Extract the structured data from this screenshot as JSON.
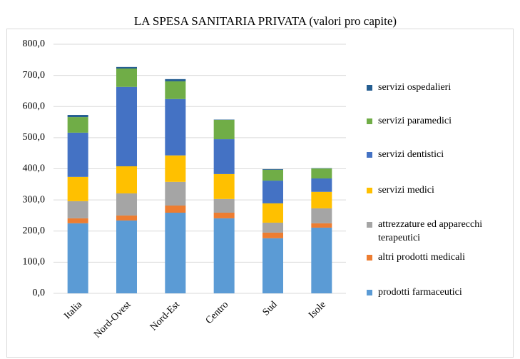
{
  "chart_data": {
    "type": "stacked-bar",
    "title": "LA SPESA SANITARIA PRIVATA (valori pro capite)",
    "categories": [
      "Italia",
      "Nord-Ovest",
      "Nord-Est",
      "Centro",
      "Sud",
      "Isole"
    ],
    "series": [
      {
        "name": "prodotti farmaceutici",
        "color": "#5b9bd5",
        "values": [
          225,
          234,
          259,
          241,
          177,
          211
        ]
      },
      {
        "name": "altri prodotti medicali",
        "color": "#ed7d31",
        "values": [
          16,
          16,
          23,
          18,
          18,
          14
        ]
      },
      {
        "name": "attrezzature ed apparecchi terapeutici",
        "color": "#a5a5a5",
        "values": [
          55,
          71,
          76,
          44,
          32,
          48
        ]
      },
      {
        "name": "servizi medici",
        "color": "#ffc000",
        "values": [
          78,
          87,
          85,
          80,
          62,
          53
        ]
      },
      {
        "name": "servizi dentistici",
        "color": "#4472c4",
        "values": [
          142,
          255,
          181,
          112,
          73,
          43
        ]
      },
      {
        "name": "servizi paramedici",
        "color": "#70ad47",
        "values": [
          50,
          59,
          57,
          62,
          35,
          32
        ]
      },
      {
        "name": "servizi ospedalieri",
        "color": "#255e91",
        "values": [
          7,
          5,
          7,
          1,
          2,
          1
        ]
      }
    ],
    "ylim": [
      0,
      800
    ],
    "yticks": [
      {
        "value": 0,
        "label": "0,0"
      },
      {
        "value": 100,
        "label": "100,0"
      },
      {
        "value": 200,
        "label": "200,0"
      },
      {
        "value": 300,
        "label": "300,0"
      },
      {
        "value": 400,
        "label": "400,0"
      },
      {
        "value": 500,
        "label": "500,0"
      },
      {
        "value": 600,
        "label": "600,0"
      },
      {
        "value": 700,
        "label": "700,0"
      },
      {
        "value": 800,
        "label": "800,0"
      }
    ],
    "grid": true,
    "legend": "right"
  }
}
